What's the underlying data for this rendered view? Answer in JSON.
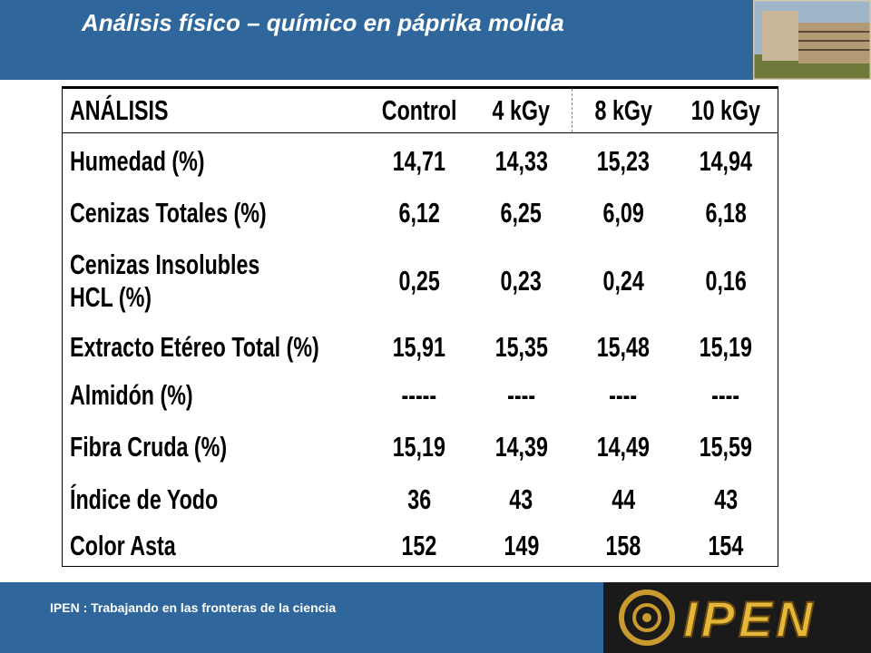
{
  "header": {
    "title": "Análisis físico – químico en páprika molida"
  },
  "table": {
    "header": [
      "ANÁLISIS",
      "Control",
      "4 kGy",
      "8 kGy",
      "10 kGy"
    ],
    "rows": [
      [
        "Humedad (%)",
        "14,71",
        "14,33",
        "15,23",
        "14,94"
      ],
      [
        "Cenizas Totales (%)",
        "6,12",
        "6,25",
        "6,09",
        "6,18"
      ],
      [
        "Cenizas Insolubles HCL (%)",
        "0,25",
        "0,23",
        "0,24",
        "0,16"
      ],
      [
        "Extracto Etéreo Total (%)",
        "15,91",
        "15,35",
        "15,48",
        "15,19"
      ],
      [
        "Almidón (%)",
        "-----",
        "----",
        "----",
        "----"
      ],
      [
        "Fibra Cruda (%)",
        "15,19",
        "14,39",
        "14,49",
        "15,59"
      ],
      [
        "Índice de Yodo",
        "36",
        "43",
        "44",
        "43"
      ],
      [
        "Color Asta",
        "152",
        "149",
        "158",
        "154"
      ]
    ]
  },
  "footer": {
    "text": "IPEN : Trabajando en las fronteras de la ciencia",
    "logo": "IPEN"
  }
}
